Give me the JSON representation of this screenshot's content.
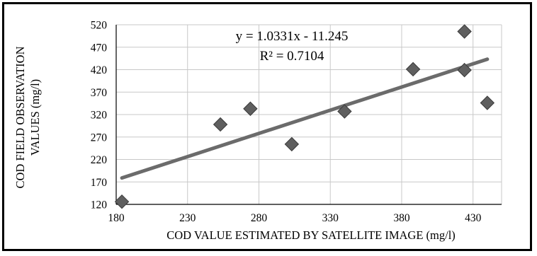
{
  "chart_data": {
    "type": "scatter",
    "title": "",
    "xlabel": "COD VALUE ESTIMATED BY SATELLITE IMAGE (mg/l)",
    "ylabel_lines": [
      "COD FIELD OBSERVATION",
      "VALUES (mg/l)"
    ],
    "xlim": [
      180,
      450
    ],
    "ylim": [
      120,
      520
    ],
    "x_ticks": [
      "180",
      "230",
      "280",
      "330",
      "380",
      "430"
    ],
    "y_ticks": [
      "120",
      "170",
      "220",
      "270",
      "320",
      "370",
      "420",
      "470",
      "520"
    ],
    "grid": true,
    "points": [
      {
        "x": 184,
        "y": 126
      },
      {
        "x": 253,
        "y": 298
      },
      {
        "x": 274,
        "y": 333
      },
      {
        "x": 303,
        "y": 254
      },
      {
        "x": 340,
        "y": 327
      },
      {
        "x": 388,
        "y": 421
      },
      {
        "x": 424,
        "y": 505
      },
      {
        "x": 424,
        "y": 419
      },
      {
        "x": 440,
        "y": 346
      }
    ],
    "trendline": {
      "slope": 1.0331,
      "intercept": -11.245,
      "x_start": 184,
      "x_end": 440,
      "equation_label": "y = 1.0331x - 11.245",
      "r2_label": "R² = 0.7104"
    },
    "colors": {
      "marker": "#5f5f5f",
      "marker_stroke": "#3a3a3a",
      "trendline": "#6b6b6b",
      "grid": "#c8c8c8",
      "axis": "#000000"
    }
  }
}
